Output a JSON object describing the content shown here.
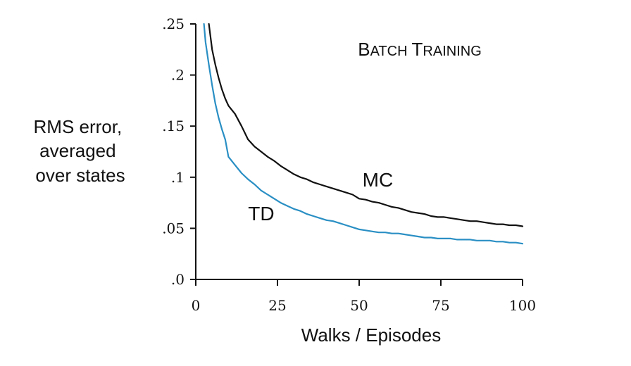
{
  "chart_data": {
    "type": "line",
    "title_small_caps": [
      {
        "initial": "B",
        "rest": "ATCH"
      },
      {
        "initial": "T",
        "rest": "RAINING"
      }
    ],
    "ylabel_lines": [
      "RMS error,",
      "averaged",
      "over states"
    ],
    "xlabel": "Walks / Episodes",
    "xlim": [
      0,
      100
    ],
    "ylim": [
      0,
      0.25
    ],
    "x_ticks": [
      {
        "value": 0,
        "label": "0"
      },
      {
        "value": 25,
        "label": "25"
      },
      {
        "value": 50,
        "label": "50"
      },
      {
        "value": 75,
        "label": "75"
      },
      {
        "value": 100,
        "label": "100"
      }
    ],
    "y_ticks": [
      {
        "value": 0,
        "label": ".0"
      },
      {
        "value": 0.05,
        "label": ".05"
      },
      {
        "value": 0.1,
        "label": ".1"
      },
      {
        "value": 0.15,
        "label": ".15"
      },
      {
        "value": 0.2,
        "label": ".2"
      },
      {
        "value": 0.25,
        "label": ".25"
      }
    ],
    "grid": false,
    "series": [
      {
        "name": "MC",
        "color": "#111111",
        "label_at": [
          51,
          0.091
        ],
        "points": [
          [
            4,
            0.25
          ],
          [
            5,
            0.225
          ],
          [
            6,
            0.21
          ],
          [
            7,
            0.197
          ],
          [
            8,
            0.186
          ],
          [
            9,
            0.177
          ],
          [
            10,
            0.17
          ],
          [
            12,
            0.162
          ],
          [
            14,
            0.15
          ],
          [
            16,
            0.137
          ],
          [
            18,
            0.13
          ],
          [
            20,
            0.125
          ],
          [
            22,
            0.12
          ],
          [
            24,
            0.116
          ],
          [
            26,
            0.111
          ],
          [
            28,
            0.107
          ],
          [
            30,
            0.103
          ],
          [
            32,
            0.1
          ],
          [
            34,
            0.098
          ],
          [
            36,
            0.095
          ],
          [
            38,
            0.093
          ],
          [
            40,
            0.091
          ],
          [
            42,
            0.089
          ],
          [
            44,
            0.087
          ],
          [
            46,
            0.085
          ],
          [
            48,
            0.083
          ],
          [
            50,
            0.079
          ],
          [
            52,
            0.078
          ],
          [
            54,
            0.076
          ],
          [
            56,
            0.075
          ],
          [
            58,
            0.073
          ],
          [
            60,
            0.071
          ],
          [
            62,
            0.07
          ],
          [
            64,
            0.068
          ],
          [
            66,
            0.066
          ],
          [
            68,
            0.065
          ],
          [
            70,
            0.064
          ],
          [
            72,
            0.062
          ],
          [
            74,
            0.061
          ],
          [
            76,
            0.061
          ],
          [
            78,
            0.06
          ],
          [
            80,
            0.059
          ],
          [
            82,
            0.058
          ],
          [
            84,
            0.057
          ],
          [
            86,
            0.057
          ],
          [
            88,
            0.056
          ],
          [
            90,
            0.055
          ],
          [
            92,
            0.054
          ],
          [
            94,
            0.054
          ],
          [
            96,
            0.053
          ],
          [
            98,
            0.053
          ],
          [
            100,
            0.052
          ]
        ]
      },
      {
        "name": "TD",
        "color": "#2a8fc4",
        "label_at": [
          16,
          0.058
        ],
        "points": [
          [
            2.5,
            0.25
          ],
          [
            3,
            0.232
          ],
          [
            4,
            0.21
          ],
          [
            5,
            0.19
          ],
          [
            6,
            0.172
          ],
          [
            7,
            0.158
          ],
          [
            8,
            0.147
          ],
          [
            9,
            0.137
          ],
          [
            10,
            0.12
          ],
          [
            12,
            0.112
          ],
          [
            14,
            0.104
          ],
          [
            16,
            0.098
          ],
          [
            18,
            0.093
          ],
          [
            20,
            0.087
          ],
          [
            22,
            0.083
          ],
          [
            24,
            0.079
          ],
          [
            26,
            0.075
          ],
          [
            28,
            0.072
          ],
          [
            30,
            0.069
          ],
          [
            32,
            0.067
          ],
          [
            34,
            0.064
          ],
          [
            36,
            0.062
          ],
          [
            38,
            0.06
          ],
          [
            40,
            0.058
          ],
          [
            42,
            0.057
          ],
          [
            44,
            0.055
          ],
          [
            46,
            0.053
          ],
          [
            48,
            0.051
          ],
          [
            50,
            0.049
          ],
          [
            52,
            0.048
          ],
          [
            54,
            0.047
          ],
          [
            56,
            0.046
          ],
          [
            58,
            0.046
          ],
          [
            60,
            0.045
          ],
          [
            62,
            0.045
          ],
          [
            64,
            0.044
          ],
          [
            66,
            0.043
          ],
          [
            68,
            0.042
          ],
          [
            70,
            0.041
          ],
          [
            72,
            0.041
          ],
          [
            74,
            0.04
          ],
          [
            76,
            0.04
          ],
          [
            78,
            0.04
          ],
          [
            80,
            0.039
          ],
          [
            82,
            0.039
          ],
          [
            84,
            0.039
          ],
          [
            86,
            0.038
          ],
          [
            88,
            0.038
          ],
          [
            90,
            0.038
          ],
          [
            92,
            0.037
          ],
          [
            94,
            0.037
          ],
          [
            96,
            0.036
          ],
          [
            98,
            0.036
          ],
          [
            100,
            0.035
          ]
        ]
      }
    ]
  }
}
